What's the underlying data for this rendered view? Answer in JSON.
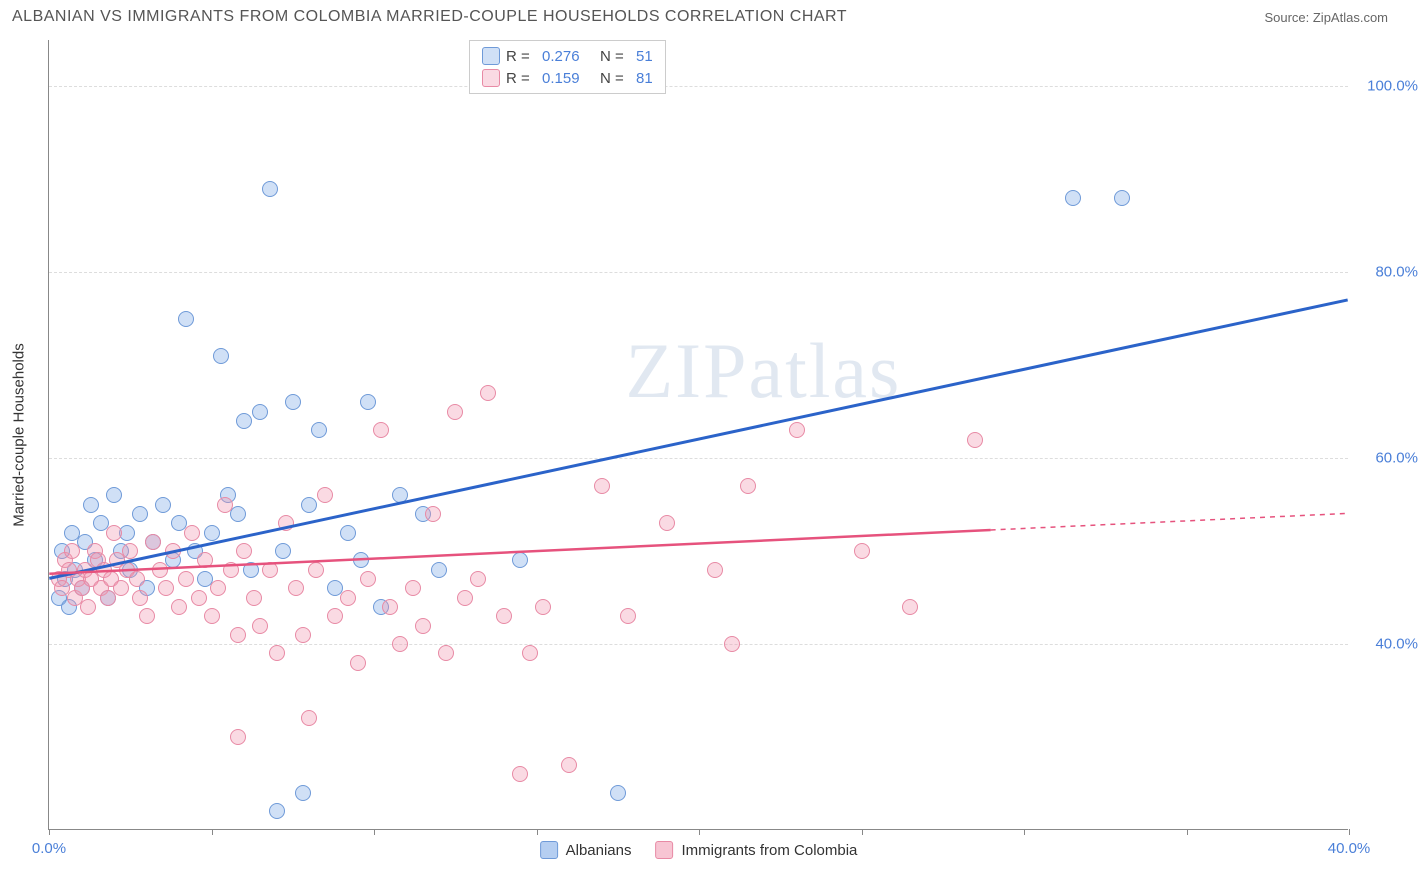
{
  "title": "ALBANIAN VS IMMIGRANTS FROM COLOMBIA MARRIED-COUPLE HOUSEHOLDS CORRELATION CHART",
  "source": "Source: ZipAtlas.com",
  "watermark": "ZIPatlas",
  "y_axis_label": "Married-couple Households",
  "chart": {
    "type": "scatter",
    "background_color": "#ffffff",
    "grid_color": "#dddddd",
    "axis_color": "#888888",
    "tick_label_color": "#4a7fd8",
    "xlim": [
      0,
      40
    ],
    "ylim": [
      20,
      105
    ],
    "x_ticks": [
      0,
      5,
      10,
      15,
      20,
      25,
      30,
      35,
      40
    ],
    "x_tick_labels": {
      "0": "0.0%",
      "40": "40.0%"
    },
    "y_ticks": [
      40,
      60,
      80,
      100
    ],
    "y_tick_labels": {
      "40": "40.0%",
      "60": "60.0%",
      "80": "80.0%",
      "100": "100.0%"
    },
    "point_radius": 8,
    "point_stroke_width": 1.5,
    "series": [
      {
        "name": "Albanians",
        "fill": "rgba(120,165,230,0.35)",
        "stroke": "#6f9ad8",
        "line_color": "#2b63c9",
        "line_width": 3,
        "trend": {
          "x1": 0,
          "y1": 47,
          "x2": 40,
          "y2": 77,
          "dashed_from_x": null
        },
        "R": "0.276",
        "N": "51",
        "points": [
          [
            0.3,
            45
          ],
          [
            0.4,
            50
          ],
          [
            0.5,
            47
          ],
          [
            0.6,
            44
          ],
          [
            0.7,
            52
          ],
          [
            0.8,
            48
          ],
          [
            1.0,
            46
          ],
          [
            1.1,
            51
          ],
          [
            1.3,
            55
          ],
          [
            1.4,
            49
          ],
          [
            1.6,
            53
          ],
          [
            1.8,
            45
          ],
          [
            2.0,
            56
          ],
          [
            2.2,
            50
          ],
          [
            2.4,
            52
          ],
          [
            2.5,
            48
          ],
          [
            2.8,
            54
          ],
          [
            3.0,
            46
          ],
          [
            3.2,
            51
          ],
          [
            3.5,
            55
          ],
          [
            3.8,
            49
          ],
          [
            4.0,
            53
          ],
          [
            4.2,
            75
          ],
          [
            4.5,
            50
          ],
          [
            4.8,
            47
          ],
          [
            5.0,
            52
          ],
          [
            5.3,
            71
          ],
          [
            5.5,
            56
          ],
          [
            5.8,
            54
          ],
          [
            6.0,
            64
          ],
          [
            6.2,
            48
          ],
          [
            6.5,
            65
          ],
          [
            6.8,
            89
          ],
          [
            7.0,
            22
          ],
          [
            7.2,
            50
          ],
          [
            7.5,
            66
          ],
          [
            7.8,
            24
          ],
          [
            8.0,
            55
          ],
          [
            8.3,
            63
          ],
          [
            8.8,
            46
          ],
          [
            9.2,
            52
          ],
          [
            9.6,
            49
          ],
          [
            9.8,
            66
          ],
          [
            10.2,
            44
          ],
          [
            10.8,
            56
          ],
          [
            11.5,
            54
          ],
          [
            12.0,
            48
          ],
          [
            14.5,
            49
          ],
          [
            17.5,
            24
          ],
          [
            31.5,
            88
          ],
          [
            33.0,
            88
          ]
        ]
      },
      {
        "name": "Immigrants from Colombia",
        "fill": "rgba(240,150,175,0.35)",
        "stroke": "#e88aa5",
        "line_color": "#e6527d",
        "line_width": 2.5,
        "trend": {
          "x1": 0,
          "y1": 47.5,
          "x2": 40,
          "y2": 54,
          "dashed_from_x": 29
        },
        "R": "0.159",
        "N": "81",
        "points": [
          [
            0.3,
            47
          ],
          [
            0.4,
            46
          ],
          [
            0.5,
            49
          ],
          [
            0.6,
            48
          ],
          [
            0.7,
            50
          ],
          [
            0.8,
            45
          ],
          [
            0.9,
            47
          ],
          [
            1.0,
            46
          ],
          [
            1.1,
            48
          ],
          [
            1.2,
            44
          ],
          [
            1.3,
            47
          ],
          [
            1.4,
            50
          ],
          [
            1.5,
            49
          ],
          [
            1.6,
            46
          ],
          [
            1.7,
            48
          ],
          [
            1.8,
            45
          ],
          [
            1.9,
            47
          ],
          [
            2.0,
            52
          ],
          [
            2.1,
            49
          ],
          [
            2.2,
            46
          ],
          [
            2.4,
            48
          ],
          [
            2.5,
            50
          ],
          [
            2.7,
            47
          ],
          [
            2.8,
            45
          ],
          [
            3.0,
            43
          ],
          [
            3.2,
            51
          ],
          [
            3.4,
            48
          ],
          [
            3.6,
            46
          ],
          [
            3.8,
            50
          ],
          [
            4.0,
            44
          ],
          [
            4.2,
            47
          ],
          [
            4.4,
            52
          ],
          [
            4.6,
            45
          ],
          [
            4.8,
            49
          ],
          [
            5.0,
            43
          ],
          [
            5.2,
            46
          ],
          [
            5.4,
            55
          ],
          [
            5.6,
            48
          ],
          [
            5.8,
            41
          ],
          [
            6.0,
            50
          ],
          [
            6.3,
            45
          ],
          [
            6.5,
            42
          ],
          [
            6.8,
            48
          ],
          [
            7.0,
            39
          ],
          [
            7.3,
            53
          ],
          [
            7.6,
            46
          ],
          [
            7.8,
            41
          ],
          [
            8.0,
            32
          ],
          [
            8.2,
            48
          ],
          [
            8.5,
            56
          ],
          [
            8.8,
            43
          ],
          [
            5.8,
            30
          ],
          [
            9.2,
            45
          ],
          [
            9.5,
            38
          ],
          [
            9.8,
            47
          ],
          [
            10.2,
            63
          ],
          [
            10.5,
            44
          ],
          [
            10.8,
            40
          ],
          [
            11.2,
            46
          ],
          [
            11.5,
            42
          ],
          [
            11.8,
            54
          ],
          [
            12.2,
            39
          ],
          [
            12.5,
            65
          ],
          [
            12.8,
            45
          ],
          [
            13.2,
            47
          ],
          [
            13.5,
            67
          ],
          [
            14.0,
            43
          ],
          [
            14.5,
            26
          ],
          [
            14.8,
            39
          ],
          [
            15.2,
            44
          ],
          [
            16.0,
            27
          ],
          [
            17.0,
            57
          ],
          [
            17.8,
            43
          ],
          [
            19.0,
            53
          ],
          [
            20.5,
            48
          ],
          [
            21.5,
            57
          ],
          [
            23.0,
            63
          ],
          [
            25.0,
            50
          ],
          [
            26.5,
            44
          ],
          [
            28.5,
            62
          ],
          [
            21.0,
            40
          ]
        ]
      }
    ]
  },
  "legend_bottom": [
    {
      "label": "Albanians",
      "fill": "rgba(120,165,230,0.55)",
      "stroke": "#6f9ad8"
    },
    {
      "label": "Immigrants from Colombia",
      "fill": "rgba(240,150,175,0.55)",
      "stroke": "#e88aa5"
    }
  ],
  "legend_top_labels": {
    "R": "R =",
    "N": "N ="
  }
}
